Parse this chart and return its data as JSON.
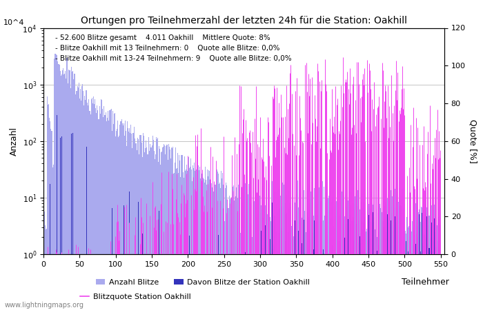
{
  "title": "Ortungen pro Teilnehmerzahl der letzten 24h für die Station: Oakhill",
  "xlabel": "Teilnehmer",
  "ylabel_left": "Anzahl",
  "ylabel_right": "Quote [%]",
  "annotation_lines": [
    "52.600 Blitze gesamt    4.011 Oakhill    Mittlere Quote: 8%",
    "Blitze Oakhill mit 13 Teilnehmern: 0    Quote alle Blitze: 0,0%",
    "Blitze Oakhill mit 13-24 Teilnehmern: 9    Quote alle Blitze: 0,0%"
  ],
  "xlim": [
    0,
    555
  ],
  "ylim_left": [
    1,
    10000
  ],
  "ylim_right": [
    0,
    120
  ],
  "yticks_right": [
    0,
    20,
    40,
    60,
    80,
    100,
    120
  ],
  "color_bar_total": "#aaaaee",
  "color_bar_station": "#3333bb",
  "color_line_quote": "#ee44ee",
  "color_grid": "#bbbbbb",
  "watermark": "www.lightningmaps.org",
  "legend_entries": [
    "Anzahl Blitze",
    "Davon Blitze der Station Oakhill",
    "Blitzquote Station Oakhill"
  ]
}
